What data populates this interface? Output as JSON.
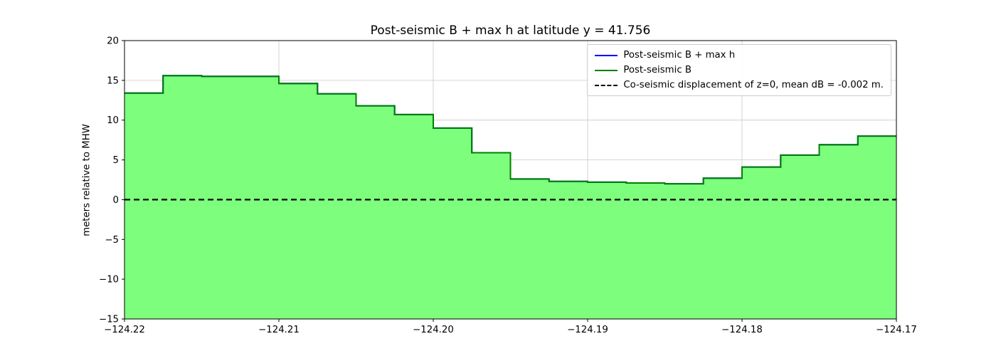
{
  "chart_data": {
    "type": "area",
    "title": "Post-seismic B + max h at latitude y = 41.756",
    "xlabel": "",
    "ylabel": "meters relative to MHW",
    "xlim": [
      -124.22,
      -124.17
    ],
    "ylim": [
      -15,
      20
    ],
    "grid": true,
    "legend_position": "upper right",
    "x_ticks": [
      -124.22,
      -124.21,
      -124.2,
      -124.19,
      -124.18,
      -124.17
    ],
    "x_tick_labels": [
      "−124.22",
      "−124.21",
      "−124.20",
      "−124.19",
      "−124.18",
      "−124.17"
    ],
    "y_ticks": [
      -15,
      -10,
      -5,
      0,
      5,
      10,
      15,
      20
    ],
    "y_tick_labels": [
      "−15",
      "−10",
      "−5",
      "0",
      "5",
      "10",
      "15",
      "20"
    ],
    "step_edges": [
      -124.22,
      -124.2175,
      -124.215,
      -124.2125,
      -124.21,
      -124.2075,
      -124.205,
      -124.2025,
      -124.2,
      -124.1975,
      -124.195,
      -124.1925,
      -124.19,
      -124.1875,
      -124.185,
      -124.1825,
      -124.18,
      -124.1775,
      -124.175,
      -124.1725,
      -124.17
    ],
    "step_values": [
      13.4,
      15.6,
      15.5,
      15.5,
      14.6,
      13.3,
      11.8,
      10.7,
      9.0,
      5.9,
      2.6,
      2.3,
      2.2,
      2.1,
      2.0,
      2.7,
      4.1,
      5.6,
      6.9,
      8.0
    ],
    "series": [
      {
        "name": "Post-seismic B + max h",
        "color": "#0000ff",
        "style": "solid"
      },
      {
        "name": "Post-seismic B",
        "color": "#008000",
        "style": "solid",
        "fill": "#7dff7d"
      },
      {
        "name": "Co-seismic displacement of z=0, mean dB = -0.002 m.",
        "color": "#000000",
        "style": "dashed",
        "y": 0
      }
    ],
    "zero_line_y": 0,
    "colors": {
      "fill_green": "#7dff7d",
      "line_green": "#008000",
      "line_blue": "#0000ff",
      "dashed_black": "#000000",
      "grid": "#c8c8c8"
    }
  }
}
